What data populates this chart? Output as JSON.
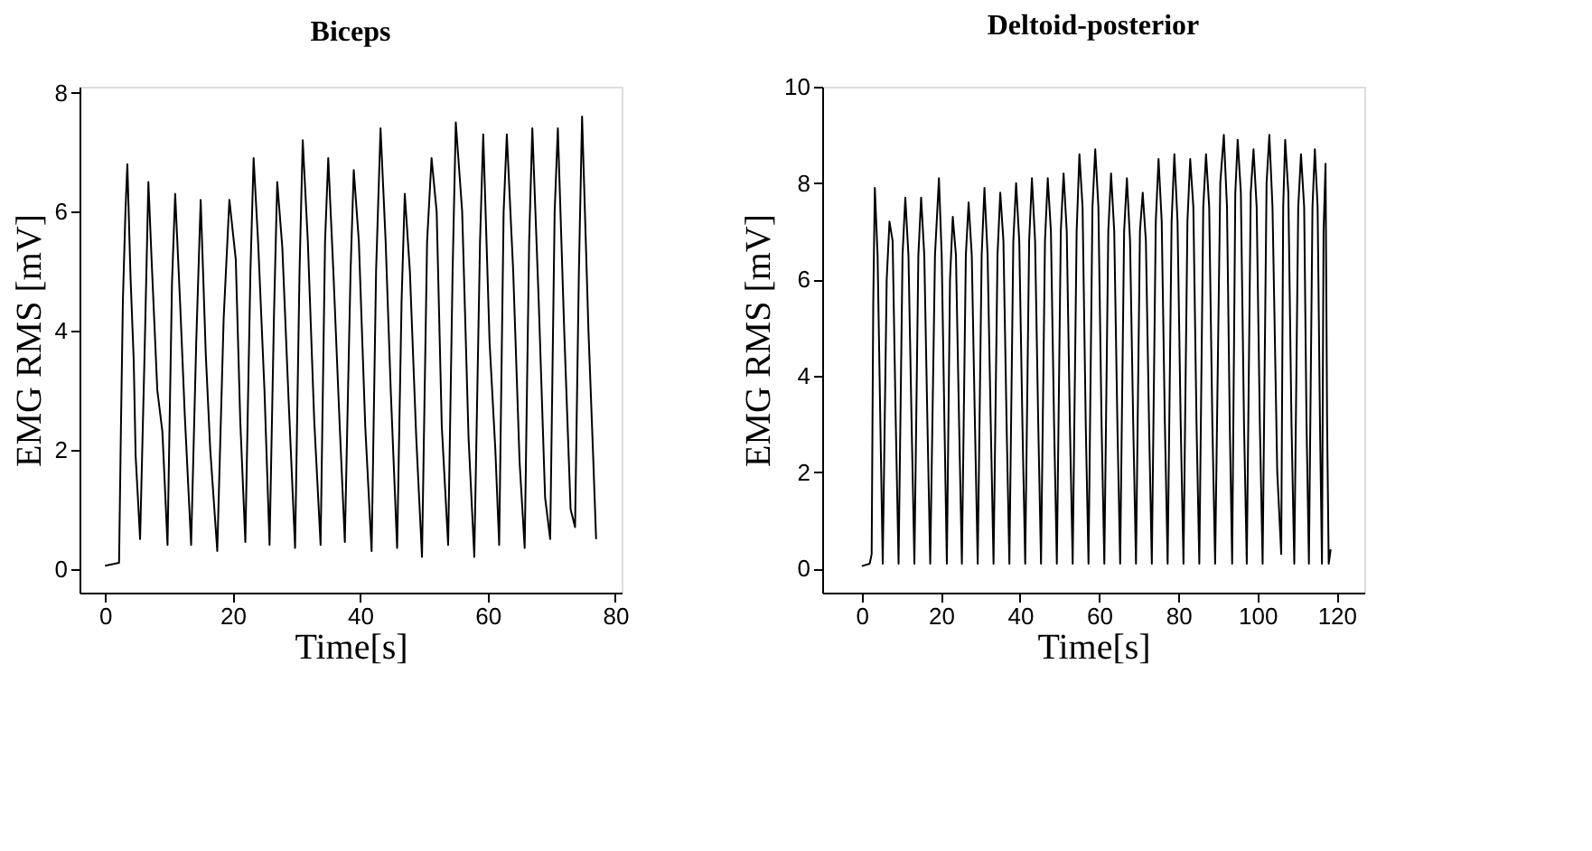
{
  "chart_data": [
    {
      "type": "line",
      "title": "Biceps",
      "xlabel": "Time[s]",
      "ylabel": "EMG RMS [mV]",
      "xlim": [
        -4,
        81
      ],
      "ylim": [
        -0.4,
        8.1
      ],
      "xticks": [
        0,
        20,
        40,
        60,
        80
      ],
      "yticks": [
        0,
        2,
        4,
        6,
        8
      ],
      "grid": false,
      "marker": "none",
      "line_style": "solid",
      "series": [
        {
          "color": "#000000",
          "x": [
            0,
            2.2,
            2.5,
            2.8,
            3.2,
            3.5,
            4.0,
            4.5,
            4.8,
            5.5,
            6.2,
            6.8,
            7.3,
            8.2,
            9.0,
            9.8,
            10.5,
            11.0,
            11.8,
            12.5,
            13.5,
            14.3,
            15.0,
            15.8,
            16.5,
            17.6,
            18.6,
            19.5,
            20.5,
            21.2,
            22.0,
            22.8,
            23.3,
            24.0,
            25.0,
            25.8,
            26.5,
            27.0,
            27.8,
            28.8,
            29.8,
            30.5,
            31.0,
            31.8,
            32.8,
            33.8,
            34.5,
            35.0,
            35.8,
            36.8,
            37.6,
            38.5,
            39.0,
            39.8,
            40.8,
            41.8,
            42.5,
            43.2,
            44.0,
            44.8,
            45.8,
            46.5,
            47.0,
            47.8,
            48.8,
            49.7,
            50.5,
            51.2,
            52.0,
            52.8,
            53.8,
            54.5,
            55.0,
            56.0,
            57.0,
            57.9,
            58.8,
            59.3,
            60.3,
            61.2,
            61.8,
            62.5,
            63.0,
            64.0,
            65.0,
            65.8,
            66.5,
            67.0,
            68.0,
            69.0,
            69.8,
            70.5,
            71.0,
            72.0,
            73.0,
            73.7,
            74.3,
            74.8,
            75.8,
            76.5,
            77.0
          ],
          "values": [
            0.05,
            0.1,
            2.4,
            4.5,
            6.0,
            6.8,
            4.9,
            3.5,
            1.9,
            0.5,
            3.6,
            6.5,
            5.2,
            3.0,
            2.3,
            0.4,
            4.8,
            6.3,
            4.4,
            2.6,
            0.4,
            3.8,
            6.2,
            3.6,
            2.0,
            0.3,
            4.2,
            6.2,
            5.2,
            2.5,
            0.45,
            5.0,
            6.9,
            5.5,
            3.0,
            0.4,
            4.3,
            6.5,
            5.4,
            2.8,
            0.35,
            5.0,
            7.2,
            5.5,
            2.5,
            0.4,
            5.5,
            6.9,
            5.0,
            2.4,
            0.45,
            5.0,
            6.7,
            5.5,
            2.4,
            0.3,
            5.0,
            7.4,
            5.5,
            3.0,
            0.35,
            4.5,
            6.3,
            5.0,
            2.2,
            0.2,
            5.5,
            6.9,
            6.0,
            2.4,
            0.4,
            5.0,
            7.5,
            6.0,
            2.2,
            0.2,
            5.5,
            7.3,
            3.8,
            2.0,
            0.4,
            6.0,
            7.3,
            5.0,
            1.8,
            0.35,
            5.5,
            7.4,
            4.5,
            1.2,
            0.5,
            6.0,
            7.4,
            4.0,
            1.0,
            0.7,
            5.0,
            7.6,
            4.0,
            2.0,
            0.5
          ]
        }
      ]
    },
    {
      "type": "line",
      "title": "Deltoid-posterior",
      "xlabel": "Time[s]",
      "ylabel": "EMG RMS [mV]",
      "xlim": [
        -10,
        127
      ],
      "ylim": [
        -0.5,
        10
      ],
      "xticks": [
        0,
        20,
        40,
        60,
        80,
        100,
        120
      ],
      "yticks": [
        0,
        2,
        4,
        6,
        8,
        10
      ],
      "grid": false,
      "marker": "none",
      "line_style": "solid",
      "series": [
        {
          "color": "#000000",
          "x": [
            0,
            2,
            2.5,
            2.9,
            3.3,
            4.0,
            4.7,
            5.3,
            6.3,
            7.0,
            7.8,
            8.6,
            9.3,
            10.3,
            11.0,
            11.8,
            12.6,
            13.3,
            14.3,
            15.0,
            15.8,
            16.6,
            17.3,
            18.5,
            19.5,
            20.2,
            20.9,
            21.5,
            22.3,
            23.0,
            23.8,
            24.6,
            25.3,
            26.3,
            27.0,
            27.8,
            28.6,
            29.3,
            30.3,
            31.0,
            31.8,
            32.6,
            33.3,
            34.3,
            35.0,
            35.8,
            36.6,
            37.3,
            38.3,
            39.0,
            39.8,
            40.6,
            41.3,
            42.3,
            43.0,
            43.8,
            44.6,
            45.3,
            46.3,
            47.0,
            47.8,
            48.6,
            49.3,
            50.3,
            51.0,
            51.8,
            52.6,
            53.3,
            54.3,
            55.0,
            55.8,
            56.6,
            57.3,
            58.3,
            59.0,
            59.8,
            60.6,
            61.3,
            62.3,
            63.0,
            63.8,
            64.6,
            65.3,
            66.3,
            67.0,
            67.8,
            68.6,
            69.3,
            70.3,
            71.0,
            71.8,
            72.6,
            73.3,
            74.3,
            75.0,
            75.8,
            76.6,
            77.3,
            78.3,
            79.0,
            79.8,
            80.6,
            81.3,
            82.3,
            83.0,
            83.8,
            84.6,
            85.3,
            86.3,
            87.0,
            87.8,
            88.6,
            89.3,
            90.6,
            91.5,
            92.3,
            93.0,
            93.6,
            94.4,
            95.0,
            95.8,
            96.6,
            97.3,
            98.3,
            99.0,
            99.8,
            100.6,
            101.3,
            102.3,
            103.0,
            103.8,
            105.0,
            106.0,
            106.5,
            107.0,
            107.8,
            108.6,
            109.3,
            110.3,
            111.0,
            111.8,
            112.4,
            113.0,
            113.9,
            114.5,
            115.2,
            115.8,
            116.3,
            116.7,
            117.2,
            117.6,
            118.0,
            118.5
          ],
          "values": [
            0.05,
            0.1,
            0.3,
            5.5,
            7.9,
            6.5,
            3.0,
            0.1,
            6.0,
            7.2,
            6.8,
            3.0,
            0.1,
            6.5,
            7.7,
            6.5,
            3.0,
            0.1,
            6.5,
            7.7,
            6.5,
            3.0,
            0.1,
            6.5,
            8.1,
            6.5,
            3.0,
            0.1,
            6.0,
            7.3,
            6.5,
            3.0,
            0.1,
            6.5,
            7.6,
            6.5,
            3.0,
            0.1,
            6.5,
            7.9,
            6.5,
            3.0,
            0.1,
            6.5,
            7.8,
            6.8,
            3.0,
            0.1,
            6.8,
            8.0,
            6.8,
            3.0,
            0.1,
            6.8,
            8.1,
            6.8,
            3.0,
            0.1,
            6.8,
            8.1,
            7.0,
            3.0,
            0.1,
            7.0,
            8.2,
            7.0,
            3.0,
            0.1,
            7.0,
            8.6,
            7.5,
            3.0,
            0.1,
            7.5,
            8.7,
            7.5,
            3.0,
            0.1,
            7.0,
            8.2,
            7.0,
            3.0,
            0.1,
            7.0,
            8.1,
            6.8,
            3.0,
            0.1,
            7.0,
            7.8,
            6.8,
            3.0,
            0.1,
            7.2,
            8.5,
            7.2,
            3.0,
            0.1,
            7.2,
            8.6,
            7.2,
            3.0,
            0.1,
            7.2,
            8.5,
            7.5,
            3.0,
            0.1,
            7.5,
            8.6,
            7.5,
            3.0,
            0.1,
            8.0,
            9.0,
            7.5,
            3.0,
            0.1,
            7.8,
            8.9,
            7.8,
            3.0,
            0.1,
            7.8,
            8.7,
            7.5,
            3.0,
            0.1,
            8.0,
            9.0,
            7.5,
            2.0,
            0.3,
            7.5,
            8.9,
            7.8,
            3.0,
            0.1,
            7.5,
            8.6,
            7.5,
            3.0,
            0.1,
            7.5,
            8.7,
            7.5,
            3.0,
            0.1,
            7.0,
            8.4,
            3.0,
            0.1,
            0.4
          ]
        }
      ]
    }
  ]
}
